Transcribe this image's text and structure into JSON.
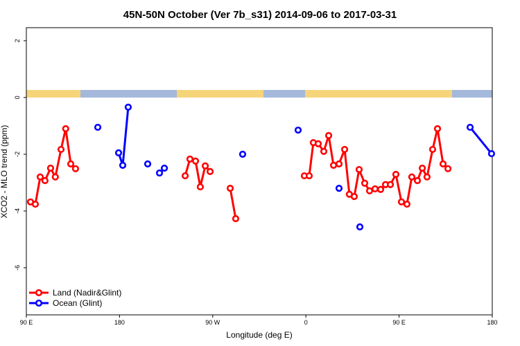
{
  "chart_data": {
    "type": "line",
    "title": "45N-50N October (Ver 7b_s31)   2014-09-06 to 2017-03-31",
    "xlabel": "Longitude (deg E)",
    "ylabel": "XCO2 - MLO trend (ppm)",
    "xlim": [
      90,
      540
    ],
    "ylim": [
      -7.66,
      2.46
    ],
    "xticks": [
      {
        "value": 90,
        "label": "90 E"
      },
      {
        "value": 180,
        "label": "180"
      },
      {
        "value": 270,
        "label": "90 W"
      },
      {
        "value": 360,
        "label": "0"
      },
      {
        "value": 450,
        "label": "90 E"
      },
      {
        "value": 540,
        "label": "180"
      }
    ],
    "yticks": [
      -6,
      -4,
      -2,
      0,
      2
    ],
    "legend": "bottom-left",
    "series": [
      {
        "name": "Land (Nadir&Glint)",
        "color": "#ff0000",
        "x": [
          94,
          98.7,
          103.4,
          108,
          113.4,
          118,
          123.5,
          128,
          132.9,
          137.5,
          null,
          243.4,
          248,
          253.4,
          258,
          262.8,
          267.5,
          null,
          286.9,
          292.2,
          null,
          358.5,
          363.2,
          367.2,
          371.9,
          377.3,
          382,
          386.7,
          392,
          397.4,
          402,
          406.7,
          411.4,
          416.8,
          421.5,
          426.8,
          432.2,
          436.9,
          441.6,
          446.9,
          452.3,
          457.6,
          462.3,
          467.7,
          472.4,
          477,
          482.4,
          487.1,
          492.5,
          497.2
        ],
        "values": [
          -3.68,
          -3.76,
          -2.8,
          -2.93,
          -2.49,
          -2.8,
          -1.83,
          -1.1,
          -2.34,
          -2.51,
          null,
          -2.76,
          -2.17,
          -2.24,
          -3.15,
          -2.41,
          -2.61,
          null,
          -3.2,
          -4.27,
          null,
          -2.76,
          -2.76,
          -1.59,
          -1.63,
          -1.9,
          -1.34,
          -2.39,
          -2.34,
          -1.83,
          -3.41,
          -3.49,
          -2.54,
          -3.02,
          -3.29,
          -3.22,
          -3.24,
          -3.07,
          -3.07,
          -2.71,
          -3.68,
          -3.76,
          -2.8,
          -2.93,
          -2.49,
          -2.8,
          -1.83,
          -1.1,
          -2.34,
          -2.51
        ]
      },
      {
        "name": "Ocean (Glint)",
        "color": "#0000ff",
        "x": [
          159,
          null,
          179.1,
          183.1,
          188.4,
          null,
          207.2,
          null,
          218.6,
          223.3,
          null,
          298.9,
          null,
          352.5,
          null,
          392,
          null,
          412.1,
          null,
          518.6,
          539.3
        ],
        "values": [
          -1.05,
          null,
          -1.95,
          -2.39,
          -0.34,
          null,
          -2.34,
          null,
          -2.66,
          -2.49,
          null,
          -2.0,
          null,
          -1.15,
          null,
          -3.2,
          null,
          -4.56,
          null,
          -1.05,
          -1.98
        ]
      }
    ]
  }
}
